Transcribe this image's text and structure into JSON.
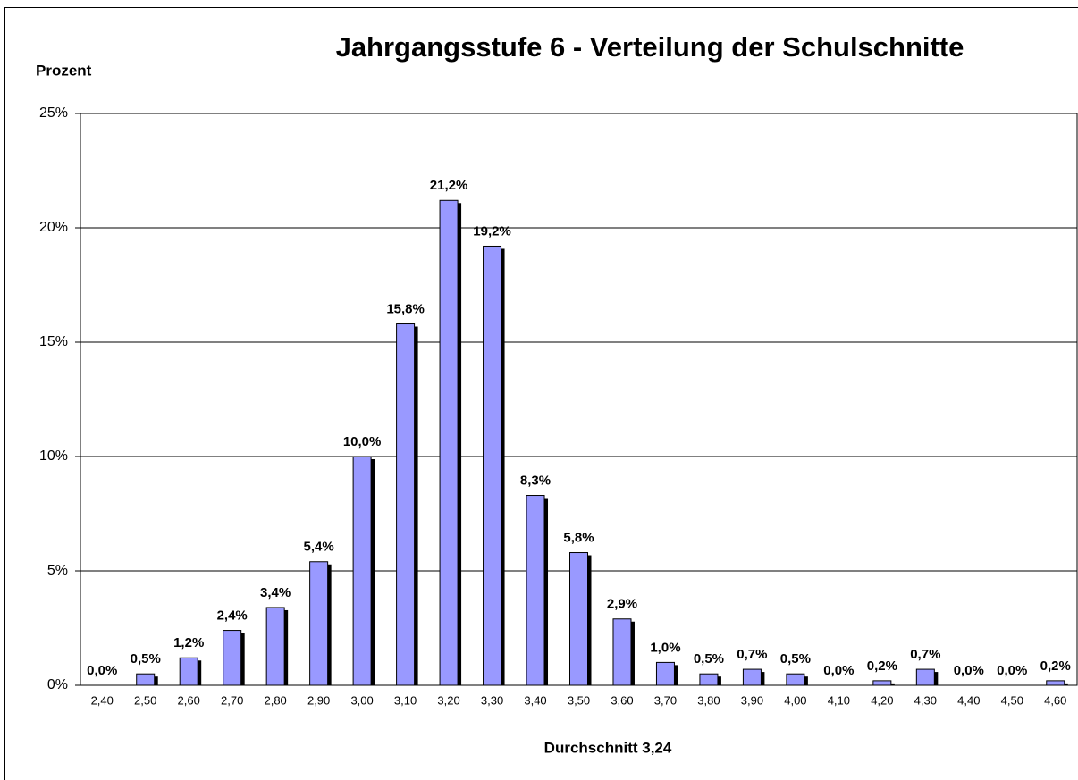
{
  "chart_data": {
    "type": "bar",
    "title": "Jahrgangsstufe 6 - Verteilung der Schulschnitte",
    "y_label": "Prozent",
    "x_label": "Durchschnitt 3,24",
    "categories": [
      "2,40",
      "2,50",
      "2,60",
      "2,70",
      "2,80",
      "2,90",
      "3,00",
      "3,10",
      "3,20",
      "3,30",
      "3,40",
      "3,50",
      "3,60",
      "3,70",
      "3,80",
      "3,90",
      "4,00",
      "4,10",
      "4,20",
      "4,30",
      "4,40",
      "4,50",
      "4,60"
    ],
    "values": [
      0.0,
      0.5,
      1.2,
      2.4,
      3.4,
      5.4,
      10.0,
      15.8,
      21.2,
      19.2,
      8.3,
      5.8,
      2.9,
      1.0,
      0.5,
      0.7,
      0.5,
      0.0,
      0.2,
      0.7,
      0.0,
      0.0,
      0.2
    ],
    "value_labels": [
      "0,0%",
      "0,5%",
      "1,2%",
      "2,4%",
      "3,4%",
      "5,4%",
      "10,0%",
      "15,8%",
      "21,2%",
      "19,2%",
      "8,3%",
      "5,8%",
      "2,9%",
      "1,0%",
      "0,5%",
      "0,7%",
      "0,5%",
      "0,0%",
      "0,2%",
      "0,7%",
      "0,0%",
      "0,0%",
      "0,2%"
    ],
    "color": "#9999ff",
    "ylim": [
      0,
      25
    ],
    "yticks": [
      {
        "value": 0,
        "label": "0%"
      },
      {
        "value": 5,
        "label": "5%"
      },
      {
        "value": 10,
        "label": "10%"
      },
      {
        "value": 15,
        "label": "15%"
      },
      {
        "value": 20,
        "label": "20%"
      },
      {
        "value": 25,
        "label": "25%"
      }
    ],
    "grid": true
  }
}
